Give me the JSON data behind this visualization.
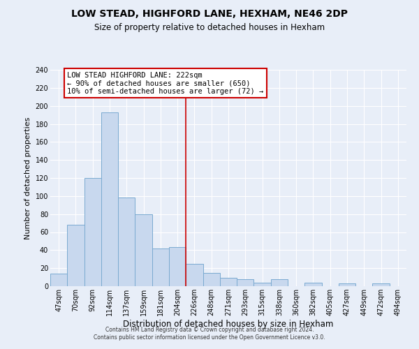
{
  "title": "LOW STEAD, HIGHFORD LANE, HEXHAM, NE46 2DP",
  "subtitle": "Size of property relative to detached houses in Hexham",
  "xlabel": "Distribution of detached houses by size in Hexham",
  "ylabel": "Number of detached properties",
  "bin_labels": [
    "47sqm",
    "70sqm",
    "92sqm",
    "114sqm",
    "137sqm",
    "159sqm",
    "181sqm",
    "204sqm",
    "226sqm",
    "248sqm",
    "271sqm",
    "293sqm",
    "315sqm",
    "338sqm",
    "360sqm",
    "382sqm",
    "405sqm",
    "427sqm",
    "449sqm",
    "472sqm",
    "494sqm"
  ],
  "bar_heights": [
    14,
    68,
    120,
    193,
    98,
    80,
    42,
    43,
    25,
    15,
    9,
    8,
    4,
    8,
    0,
    4,
    0,
    3,
    0,
    3,
    0
  ],
  "bar_color": "#c8d8ee",
  "bar_edge_color": "#7aaad0",
  "vline_x_index": 8,
  "vline_color": "#cc0000",
  "annotation_title": "LOW STEAD HIGHFORD LANE: 222sqm",
  "annotation_line1": "← 90% of detached houses are smaller (650)",
  "annotation_line2": "10% of semi-detached houses are larger (72) →",
  "annotation_box_edge": "#cc0000",
  "ylim": [
    0,
    240
  ],
  "yticks": [
    0,
    20,
    40,
    60,
    80,
    100,
    120,
    140,
    160,
    180,
    200,
    220,
    240
  ],
  "footer1": "Contains HM Land Registry data © Crown copyright and database right 2024.",
  "footer2": "Contains public sector information licensed under the Open Government Licence v3.0.",
  "bg_color": "#e8eef8",
  "grid_color": "#ffffff",
  "title_fontsize": 10,
  "subtitle_fontsize": 8.5,
  "ylabel_fontsize": 8,
  "xlabel_fontsize": 8.5,
  "tick_fontsize": 7,
  "footer_fontsize": 5.5,
  "ann_fontsize": 7.5
}
